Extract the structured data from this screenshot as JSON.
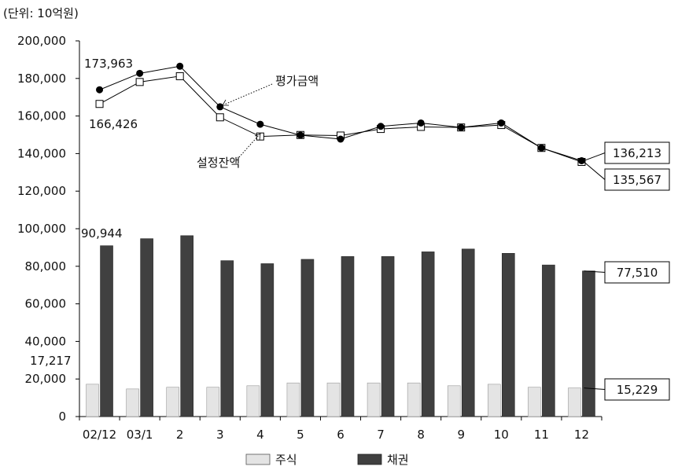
{
  "chart_data": {
    "type": "bar+line",
    "unit_note": "(단위: 10억원)",
    "categories": [
      "02/12",
      "03/1",
      "2",
      "3",
      "4",
      "5",
      "6",
      "7",
      "8",
      "9",
      "10",
      "11",
      "12"
    ],
    "ylim": [
      0,
      200000
    ],
    "yticks": [
      "0",
      "20,000",
      "40,000",
      "60,000",
      "80,000",
      "100,000",
      "120,000",
      "140,000",
      "160,000",
      "180,000",
      "200,000"
    ],
    "grid": false,
    "legend": {
      "placement": "bottom-center",
      "items": [
        "주식",
        "채권"
      ]
    },
    "bars": [
      {
        "name": "주식",
        "color": "#e4e4e4",
        "values": [
          17217,
          14700,
          15600,
          15600,
          16400,
          17900,
          17900,
          17900,
          17900,
          16400,
          17200,
          15600,
          15229
        ]
      },
      {
        "name": "채권",
        "color": "#404040",
        "values": [
          90944,
          94700,
          96300,
          83000,
          81400,
          83700,
          85200,
          85200,
          87700,
          89200,
          86900,
          80700,
          77510
        ]
      }
    ],
    "lines": [
      {
        "name": "평가금액",
        "marker": "filled-circle",
        "values": [
          173963,
          182700,
          186500,
          164900,
          155600,
          149800,
          147700,
          154500,
          156300,
          153900,
          156300,
          143000,
          136213
        ]
      },
      {
        "name": "설정잔액",
        "marker": "open-square",
        "values": [
          166426,
          178100,
          181200,
          159300,
          149100,
          149900,
          149600,
          153100,
          154200,
          153900,
          155200,
          143000,
          135567
        ]
      }
    ],
    "annotations": {
      "eval_first": "173,963",
      "setting_first": "166,426",
      "bond_first": "90,944",
      "stock_first": "17,217",
      "eval_last": "136,213",
      "setting_last": "135,567",
      "bond_last": "77,510",
      "stock_last": "15,229"
    }
  }
}
